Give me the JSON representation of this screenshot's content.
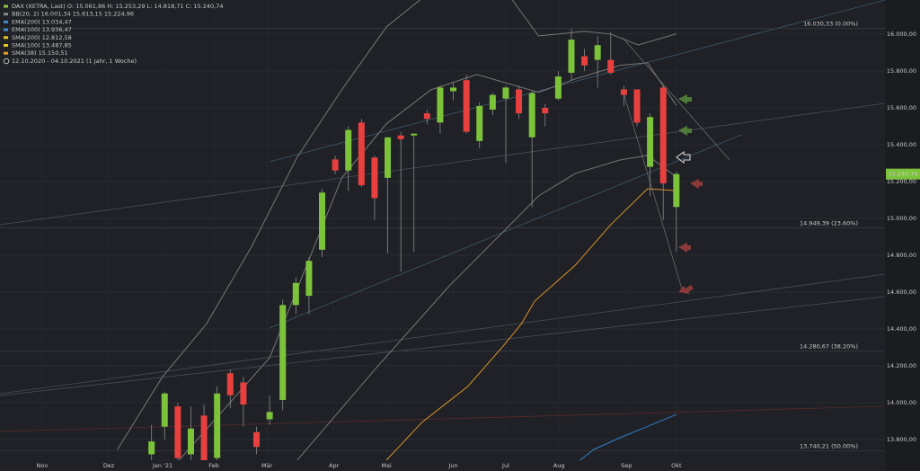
{
  "chart_data": {
    "type": "candlestick",
    "legend": [
      {
        "text": "DAX (XETRA, Last)  O: 15.061,86  H: 15.253,29  L: 14.818,71  C: 15.240,74",
        "color": "#8dc63f"
      },
      {
        "text": "BB(20, 2)  16.001,34  15.613,15  15.224,96",
        "color": "#8a8a8a"
      },
      {
        "text": "EMA(200)  13.034,47",
        "color": "#3d8fd6"
      },
      {
        "text": "EMA(100)  13.936,47",
        "color": "#3d8fd6"
      },
      {
        "text": "SMA(200)  12.812,58",
        "color": "#e6c619"
      },
      {
        "text": "SMA(100)  13.487,85",
        "color": "#e6c619"
      },
      {
        "text": "SMA(38)  15.150,51",
        "color": "#e59a2a"
      },
      {
        "text": "12.10.2020 - 04.10.2021  (1 Jahr, 1 Woche)",
        "color": "#e0e0e0"
      }
    ],
    "x": [
      11,
      12,
      13,
      14,
      15,
      16,
      17,
      18,
      19,
      20,
      21,
      22,
      23,
      24,
      25,
      26,
      27,
      28,
      29,
      30,
      31,
      32,
      33,
      34,
      35,
      36,
      37,
      38,
      39,
      40,
      41,
      42,
      43,
      44,
      45,
      46,
      47,
      48,
      49,
      50,
      51
    ],
    "open": [
      13720,
      13870,
      13980,
      13720,
      13930,
      13700,
      14160,
      14110,
      13840,
      13910,
      14015,
      14530,
      14580,
      14830,
      15320,
      15260,
      15520,
      15330,
      15220,
      15450,
      15450,
      15570,
      15520,
      15690,
      15750,
      15420,
      15590,
      15650,
      15700,
      15440,
      15600,
      15650,
      15790,
      15880,
      15860,
      15860,
      15700,
      15700,
      15280,
      15710,
      15061.86
    ],
    "high": [
      13880,
      14060,
      14000,
      13980,
      13990,
      14090,
      14180,
      14140,
      13870,
      14040,
      14560,
      14680,
      14790,
      15160,
      15340,
      15500,
      15540,
      15340,
      15440,
      15470,
      15460,
      15590,
      15720,
      15740,
      15780,
      15630,
      15680,
      15720,
      15720,
      15690,
      15620,
      15800,
      16030,
      15920,
      15990,
      16010,
      15720,
      15700,
      15570,
      15720,
      15253.29
    ],
    "low": [
      13650,
      13800,
      13650,
      13650,
      13600,
      13650,
      13970,
      13870,
      13720,
      13880,
      13960,
      14480,
      14480,
      14790,
      15240,
      15150,
      15170,
      14990,
      14810,
      14710,
      14820,
      15510,
      15460,
      15640,
      15460,
      15380,
      15560,
      15300,
      15540,
      15060,
      15500,
      15640,
      15750,
      15800,
      15710,
      15780,
      15610,
      15500,
      15120,
      14990,
      14818.71
    ],
    "close": [
      13790,
      14050,
      13700,
      13860,
      13630,
      14050,
      14040,
      13990,
      13760,
      13950,
      14530,
      14650,
      14770,
      15140,
      15260,
      15480,
      15180,
      15110,
      15440,
      15430,
      15460,
      15540,
      15710,
      15710,
      15470,
      15610,
      15670,
      15710,
      15570,
      15680,
      15570,
      15770,
      15970,
      15830,
      15940,
      15790,
      15670,
      15520,
      15550,
      15190,
      15240.74
    ],
    "up_color": "#7cc23a",
    "down_color": "#e8403f",
    "lines": [
      {
        "name": "SMA(38)",
        "color": "#d9932a",
        "x": [
          28.9,
          31.6,
          35.1,
          37.8,
          39.2,
          40.2,
          43.3,
          46,
          48.8,
          51
        ],
        "values": [
          13688,
          13893,
          14088,
          14307,
          14429,
          14551,
          14746,
          14966,
          15161,
          15150.51
        ]
      },
      {
        "name": "EMA(100)",
        "color": "#2f7fc8",
        "x": [
          42.6,
          44.7,
          46.7,
          48.7,
          51
        ],
        "values": [
          13629,
          13746,
          13810,
          13868,
          13936.47
        ]
      },
      {
        "name": "BB upper",
        "color": "#777",
        "x": [
          8.4,
          11.8,
          15.2,
          18.6,
          22.1,
          25.5,
          28.9,
          32.3,
          36,
          38.5,
          40.5,
          44,
          46,
          48.1,
          51
        ],
        "values": [
          13746,
          14137,
          14429,
          14844,
          15332,
          15698,
          16039,
          16234,
          16280,
          16185,
          15990,
          16015,
          16000,
          15941,
          16001.34
        ]
      },
      {
        "name": "BB mid",
        "color": "#777",
        "x": [
          13.1,
          20,
          25.5,
          28.9,
          32.3,
          35.8,
          40.5,
          43.3,
          46.7,
          48.8,
          51
        ],
        "values": [
          13688,
          14244,
          15220,
          15513,
          15698,
          15781,
          15684,
          15757,
          15830,
          15845,
          15613.15
        ]
      },
      {
        "name": "BB lower",
        "color": "#777",
        "x": [
          22.1,
          28.2,
          33.7,
          37.8,
          40.5,
          43.3,
          46.7,
          48.8,
          51
        ],
        "values": [
          13688,
          14195,
          14634,
          14927,
          15122,
          15244,
          15317,
          15342,
          15224.96
        ]
      }
    ],
    "levels": [
      {
        "value": 16030.33,
        "label": "16.030,33 (0.00%)"
      },
      {
        "value": 14949.39,
        "label": "14.949,39 (23.60%)"
      },
      {
        "value": 14280.67,
        "label": "14.280,67 (38.20%)"
      },
      {
        "value": 13740.21,
        "label": "13.740,21 (50.00%)"
      }
    ],
    "last_label": "15.240,74",
    "xlim": [
      -0.55,
      66.9
    ],
    "ylim": [
      13688,
      16185
    ],
    "xticks": [
      {
        "value": 2.67,
        "label": "Nov"
      },
      {
        "value": 7.74,
        "label": "Dez"
      },
      {
        "value": 11.85,
        "label": "Jan '21"
      },
      {
        "value": 15.75,
        "label": "Feb"
      },
      {
        "value": 19.8,
        "label": "Mär"
      },
      {
        "value": 24.9,
        "label": "Apr"
      },
      {
        "value": 28.9,
        "label": "Mai"
      },
      {
        "value": 34,
        "label": "Jun"
      },
      {
        "value": 38,
        "label": "Jul"
      },
      {
        "value": 42.05,
        "label": "Aug"
      },
      {
        "value": 47.2,
        "label": "Sep"
      },
      {
        "value": 51,
        "label": "Okt"
      }
    ],
    "yticks": [
      {
        "value": 16000,
        "label": "16.000,00"
      },
      {
        "value": 15800,
        "label": "15.800,00"
      },
      {
        "value": 15600,
        "label": "15.600,00"
      },
      {
        "value": 15400,
        "label": "15.400,00"
      },
      {
        "value": 15200,
        "label": "15.200,00"
      },
      {
        "value": 15000,
        "label": "15.000,00"
      },
      {
        "value": 14800,
        "label": "14.800,00"
      },
      {
        "value": 14600,
        "label": "14.600,00"
      },
      {
        "value": 14400,
        "label": "14.400,00"
      },
      {
        "value": 14200,
        "label": "14.200,00"
      },
      {
        "value": 14000,
        "label": "14.000,00"
      },
      {
        "value": 13800,
        "label": "13.800,00"
      }
    ],
    "grid": true
  }
}
